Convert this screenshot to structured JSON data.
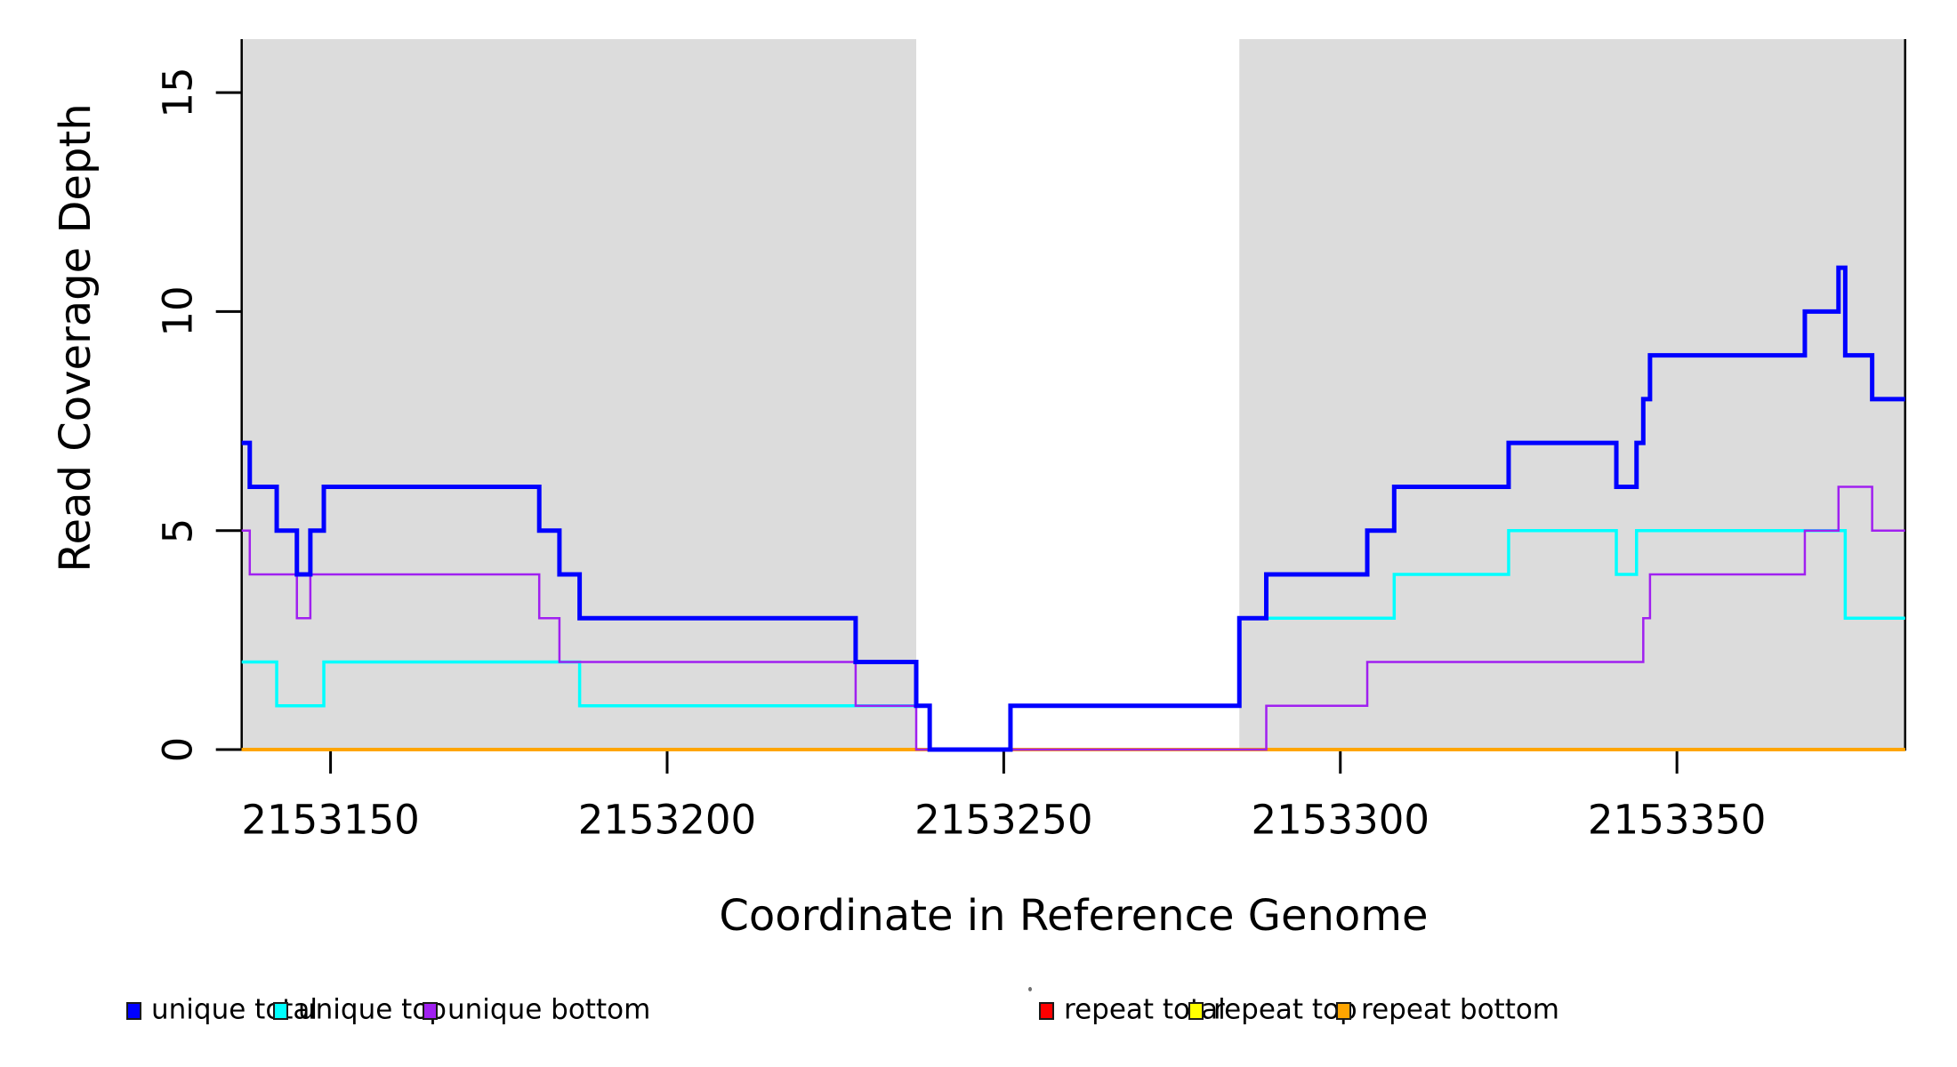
{
  "chart_data": {
    "type": "line",
    "subtype": "step",
    "title": "",
    "xlabel": "Coordinate in Reference Genome",
    "ylabel": "Read Coverage Depth",
    "xlim": [
      2153136.8,
      2153383.9
    ],
    "ylim": [
      0,
      16.22
    ],
    "x_ticks": [
      2153150,
      2153200,
      2153250,
      2153300,
      2153350
    ],
    "y_ticks": [
      0,
      5,
      10,
      15
    ],
    "grid": "off",
    "background_color": "#ffffff",
    "shade_color": "#dcdcdc",
    "shaded_regions": [
      {
        "from": 2153136.8,
        "to": 2153237
      },
      {
        "from": 2153285,
        "to": 2153383.9
      }
    ],
    "gap_region": {
      "from": 2153237,
      "to": 2153285
    },
    "legend_position": "bottom",
    "draw_order": [
      "repeat total",
      "repeat top",
      "repeat bottom",
      "unique top",
      "unique bottom",
      "unique total"
    ],
    "series": [
      {
        "name": "unique total",
        "color": "#0000ff",
        "line_width": 5,
        "steps": [
          [
            2153136.8,
            7
          ],
          [
            2153138,
            6
          ],
          [
            2153142,
            5
          ],
          [
            2153145,
            4
          ],
          [
            2153147,
            5
          ],
          [
            2153149,
            6
          ],
          [
            2153181,
            5
          ],
          [
            2153184,
            4
          ],
          [
            2153187,
            3
          ],
          [
            2153228,
            2
          ],
          [
            2153237,
            1
          ],
          [
            2153239,
            0
          ],
          [
            2153251,
            1
          ],
          [
            2153285,
            3
          ],
          [
            2153289,
            4
          ],
          [
            2153304,
            5
          ],
          [
            2153308,
            6
          ],
          [
            2153325,
            7
          ],
          [
            2153341,
            6
          ],
          [
            2153344,
            7
          ],
          [
            2153345,
            8
          ],
          [
            2153346,
            9
          ],
          [
            2153369,
            10
          ],
          [
            2153374,
            11
          ],
          [
            2153375,
            9
          ],
          [
            2153379,
            8
          ]
        ]
      },
      {
        "name": "unique top",
        "color": "#00ffff",
        "line_width": 3.5,
        "steps": [
          [
            2153136.8,
            2
          ],
          [
            2153142,
            1
          ],
          [
            2153149,
            2
          ],
          [
            2153187,
            1
          ],
          [
            2153239,
            0
          ],
          [
            2153251,
            1
          ],
          [
            2153285,
            3
          ],
          [
            2153308,
            4
          ],
          [
            2153325,
            5
          ],
          [
            2153341,
            4
          ],
          [
            2153344,
            5
          ],
          [
            2153375,
            3
          ]
        ]
      },
      {
        "name": "unique bottom",
        "color": "#a020f0",
        "line_width": 2.5,
        "steps": [
          [
            2153136.8,
            5
          ],
          [
            2153138,
            4
          ],
          [
            2153145,
            3
          ],
          [
            2153147,
            4
          ],
          [
            2153181,
            3
          ],
          [
            2153184,
            2
          ],
          [
            2153228,
            1
          ],
          [
            2153237,
            0
          ],
          [
            2153289,
            1
          ],
          [
            2153304,
            2
          ],
          [
            2153345,
            3
          ],
          [
            2153346,
            4
          ],
          [
            2153369,
            5
          ],
          [
            2153374,
            6
          ],
          [
            2153379,
            5
          ]
        ]
      },
      {
        "name": "repeat total",
        "color": "#ff0000",
        "line_width": 2,
        "steps": [
          [
            2153136.8,
            0
          ]
        ]
      },
      {
        "name": "repeat top",
        "color": "#ffff00",
        "line_width": 2.5,
        "steps": [
          [
            2153136.8,
            0
          ]
        ]
      },
      {
        "name": "repeat bottom",
        "color": "#ffa500",
        "line_width": 4,
        "steps": [
          [
            2153136.8,
            0
          ]
        ]
      }
    ],
    "legend_items": [
      {
        "label": "unique total",
        "color": "#0000ff"
      },
      {
        "label": "unique top",
        "color": "#00ffff"
      },
      {
        "label": "unique bottom",
        "color": "#a020f0"
      },
      {
        "label": "repeat total",
        "color": "#ff0000"
      },
      {
        "label": "repeat top",
        "color": "#ffff00"
      },
      {
        "label": "repeat bottom",
        "color": "#ffa500"
      }
    ]
  }
}
